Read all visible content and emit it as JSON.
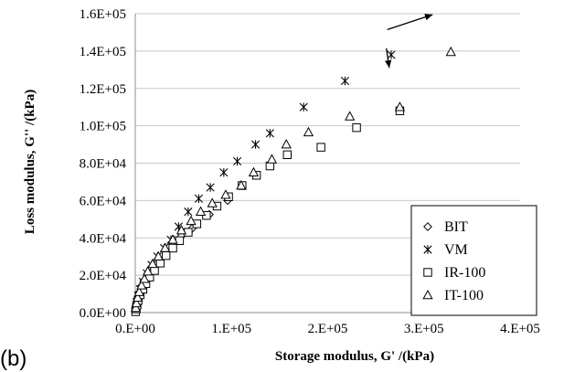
{
  "panel_label": "(b)",
  "chart_data": {
    "type": "scatter",
    "xlabel": "Storage modulus, G' /(kPa)",
    "ylabel": "Loss modulus, G'' /(kPa)",
    "xlim": [
      0,
      400000
    ],
    "ylim": [
      0,
      160000
    ],
    "x_ticks": [
      0,
      100000,
      200000,
      300000,
      400000
    ],
    "x_tick_labels": [
      "0.E+00",
      "1.E+05",
      "2.E+05",
      "3.E+05",
      "4.E+05"
    ],
    "y_ticks": [
      0,
      20000,
      40000,
      60000,
      80000,
      100000,
      120000,
      140000,
      160000
    ],
    "y_tick_labels": [
      "0.0E+00",
      "2.0E+04",
      "4.0E+04",
      "6.0E+04",
      "8.0E+04",
      "1.0E+05",
      "1.2E+05",
      "1.4E+05",
      "1.6E+05"
    ],
    "grid": "horizontal",
    "legend_position": "bottom-right",
    "series": [
      {
        "name": "BIT",
        "marker": "diamond",
        "x": [
          200,
          500,
          1000,
          1500,
          2500,
          4000,
          6000,
          9000,
          13000,
          18000,
          24000,
          31000,
          39000,
          48000,
          59000,
          77000,
          96000
        ],
        "y": [
          500,
          1500,
          3000,
          5000,
          7500,
          10500,
          14000,
          17000,
          21000,
          25000,
          29000,
          33000,
          37000,
          41000,
          45000,
          52500,
          60000
        ]
      },
      {
        "name": "VM",
        "marker": "x",
        "x": [
          300,
          800,
          1500,
          3000,
          5000,
          8000,
          12000,
          17000,
          23000,
          30000,
          37000,
          45000,
          55000,
          66000,
          78000,
          92000,
          106000,
          125000,
          140000,
          175000,
          218000,
          266000
        ],
        "y": [
          1000,
          3000,
          5500,
          9000,
          12500,
          16500,
          21000,
          25500,
          30000,
          34500,
          39000,
          46000,
          54000,
          61000,
          67000,
          75000,
          81000,
          90000,
          96000,
          110000,
          124000,
          138000
        ]
      },
      {
        "name": "IR-100",
        "marker": "square",
        "x": [
          400,
          900,
          1800,
          3000,
          5000,
          8000,
          11000,
          15000,
          20000,
          26000,
          32000,
          39000,
          46000,
          55000,
          64000,
          74000,
          85000,
          97000,
          111000,
          126000,
          140000,
          158000,
          193000,
          230000,
          275000
        ],
        "y": [
          500,
          2000,
          4000,
          6500,
          9500,
          12500,
          15500,
          19000,
          22500,
          26500,
          30500,
          34500,
          38500,
          43000,
          47500,
          52000,
          57000,
          62000,
          68000,
          73500,
          78500,
          84500,
          88500,
          99000,
          108000
        ]
      },
      {
        "name": "IT-100",
        "marker": "triangle",
        "x": [
          500,
          1200,
          2500,
          4000,
          6500,
          9500,
          13000,
          18000,
          24000,
          31000,
          39000,
          48000,
          58000,
          68000,
          80000,
          94000,
          110000,
          123000,
          142000,
          157000,
          180000,
          223000,
          275000,
          328000
        ],
        "y": [
          2500,
          5000,
          8000,
          11000,
          14500,
          18000,
          22000,
          26000,
          30000,
          34500,
          39000,
          44000,
          49000,
          54000,
          58500,
          63000,
          68000,
          75000,
          82000,
          90000,
          96500,
          105000,
          110000,
          139500
        ]
      }
    ],
    "annotations": [
      {
        "type": "arrow",
        "from": [
          262000,
          151500
        ],
        "to": [
          309000,
          159500
        ]
      },
      {
        "type": "arrow",
        "from": [
          261000,
          141500
        ],
        "to": [
          264000,
          131000
        ]
      }
    ]
  }
}
